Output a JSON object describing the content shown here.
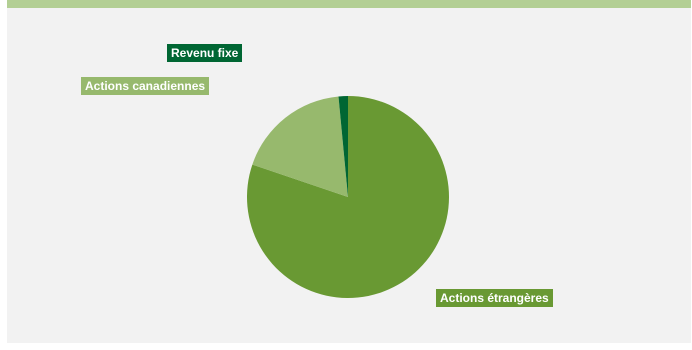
{
  "chart_data": {
    "type": "pie",
    "title": "",
    "slices": [
      {
        "label": "Actions étrangères",
        "value": 80.2,
        "color": "#699933"
      },
      {
        "label": "Actions canadiennes",
        "value": 18.3,
        "color": "#97b96d"
      },
      {
        "label": "Revenu fixe",
        "value": 1.5,
        "color": "#006633"
      }
    ],
    "legend": "none",
    "colors": {
      "background": "#f2f2f2",
      "top_bar": "#b3cf94"
    }
  }
}
